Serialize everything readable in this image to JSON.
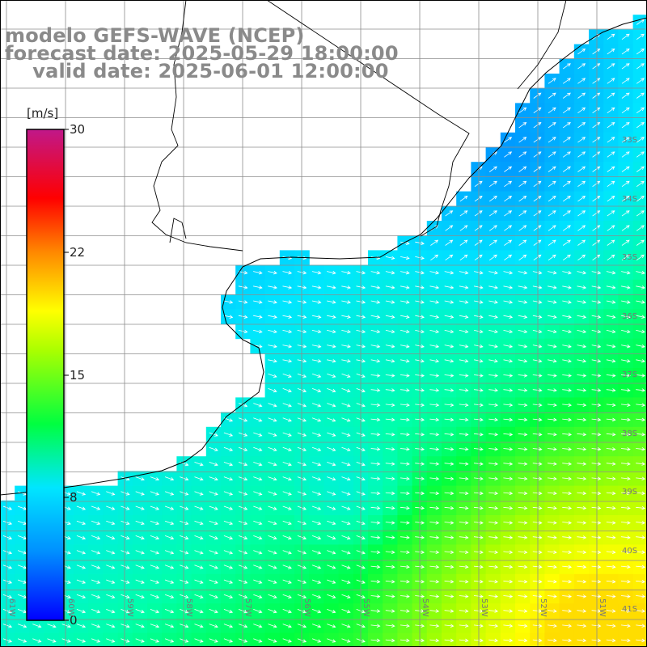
{
  "title": {
    "line1": "modelo GEFS-WAVE (NCEP)",
    "line2": "forecast date: 2025-05-29 18:00:00",
    "line3": "    valid date: 2025-06-01 12:00:00"
  },
  "colorbar": {
    "unit": "[m/s]",
    "ticks": [
      "30",
      "22",
      "15",
      "8",
      "0"
    ],
    "range": [
      0,
      30
    ]
  },
  "map": {
    "variable": "wind speed with direction arrows",
    "lon_labels": [
      "61W",
      "60W",
      "59W",
      "58W",
      "57W",
      "56W",
      "55W",
      "54W",
      "53W",
      "52W",
      "51W"
    ],
    "lat_labels": [
      "33S",
      "34S",
      "35S",
      "36S",
      "37S",
      "38S",
      "39S",
      "40S",
      "41S"
    ],
    "colors": {
      "land": "#ffffff",
      "coast": "#000000",
      "grid": "#8c8c8c",
      "arrow": "#ffffff",
      "label": "#777777"
    }
  }
}
